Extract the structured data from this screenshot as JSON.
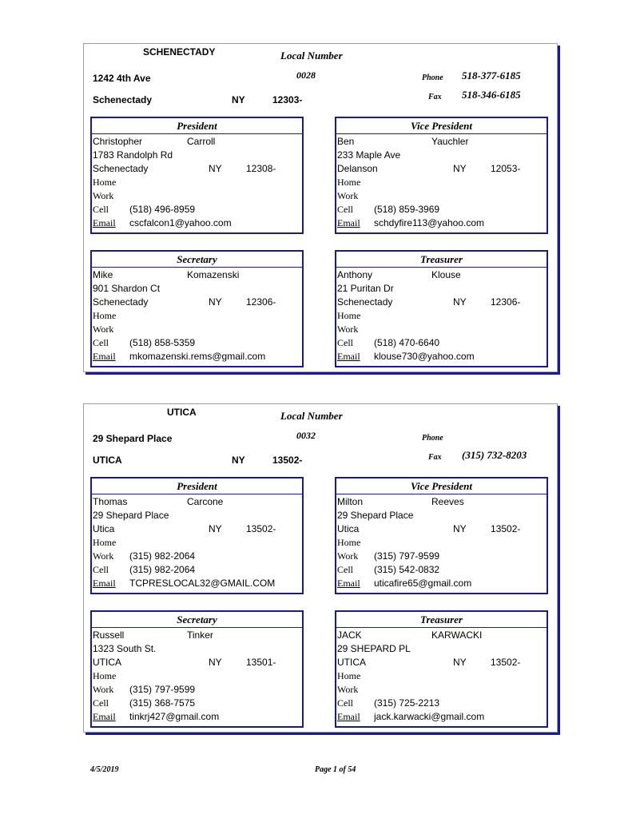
{
  "labels": {
    "local_number": "Local Number",
    "phone": "Phone",
    "fax": "Fax",
    "home": "Home",
    "work": "Work",
    "cell": "Cell",
    "email": "Email"
  },
  "locals": [
    {
      "city_title": "SCHENECTADY",
      "local_number": "0028",
      "address": "1242 4th Ave",
      "city": "Schenectady",
      "state": "NY",
      "zip": "12303-",
      "phone": "518-377-6185",
      "fax": "518-346-6185",
      "officers": [
        {
          "role": "President",
          "first": "Christopher",
          "last": "Carroll",
          "address": "1783 Randolph Rd",
          "city": "Schenectady",
          "state": "NY",
          "zip": "12308-",
          "home": "",
          "work": "",
          "cell": "(518) 496-8959",
          "email": "cscfalcon1@yahoo.com"
        },
        {
          "role": "Vice President",
          "first": "Ben",
          "last": "Yauchler",
          "address": "233 Maple Ave",
          "city": "Delanson",
          "state": "NY",
          "zip": "12053-",
          "home": "",
          "work": "",
          "cell": "(518) 859-3969",
          "email": "schdyfire113@yahoo.com"
        },
        {
          "role": "Secretary",
          "first": "Mike",
          "last": "Komazenski",
          "address": "901 Shardon Ct",
          "city": "Schenectady",
          "state": "NY",
          "zip": "12306-",
          "home": "",
          "work": "",
          "cell": "(518) 858-5359",
          "email": "mkomazenski.rems@gmail.com"
        },
        {
          "role": "Treasurer",
          "first": "Anthony",
          "last": "Klouse",
          "address": "21 Puritan Dr",
          "city": "Schenectady",
          "state": "NY",
          "zip": "12306-",
          "home": "",
          "work": "",
          "cell": "(518) 470-6640",
          "email": "klouse730@yahoo.com"
        }
      ]
    },
    {
      "city_title": "UTICA",
      "local_number": "0032",
      "address": "29 Shepard Place",
      "city": "UTICA",
      "state": "NY",
      "zip": "13502-",
      "phone": "",
      "fax": "(315) 732-8203",
      "officers": [
        {
          "role": "President",
          "first": "Thomas",
          "last": "Carcone",
          "address": "29 Shepard Place",
          "city": "Utica",
          "state": "NY",
          "zip": "13502-",
          "home": "",
          "work": "(315) 982-2064",
          "cell": "(315) 982-2064",
          "email": "TCPRESLOCAL32@GMAIL.COM"
        },
        {
          "role": "Vice President",
          "first": "Milton",
          "last": "Reeves",
          "address": "29 Shepard Place",
          "city": "Utica",
          "state": "NY",
          "zip": "13502-",
          "home": "",
          "work": "(315) 797-9599",
          "cell": "(315) 542-0832",
          "email": "uticafire65@gmail.com"
        },
        {
          "role": "Secretary",
          "first": "Russell",
          "last": "Tinker",
          "address": "1323 South St.",
          "city": "UTICA",
          "state": "NY",
          "zip": "13501-",
          "home": "",
          "work": "(315) 797-9599",
          "cell": "(315) 368-7575",
          "email": "tinkrj427@gmail.com"
        },
        {
          "role": "Treasurer",
          "first": "JACK",
          "last": "KARWACKI",
          "address": "29 SHEPARD PL",
          "city": "UTICA",
          "state": "NY",
          "zip": "13502-",
          "home": "",
          "work": "",
          "cell": "(315) 725-2213",
          "email": "jack.karwacki@gmail.com"
        }
      ]
    }
  ],
  "footer": {
    "date": "4/5/2019",
    "page": "Page 1 of 54"
  }
}
